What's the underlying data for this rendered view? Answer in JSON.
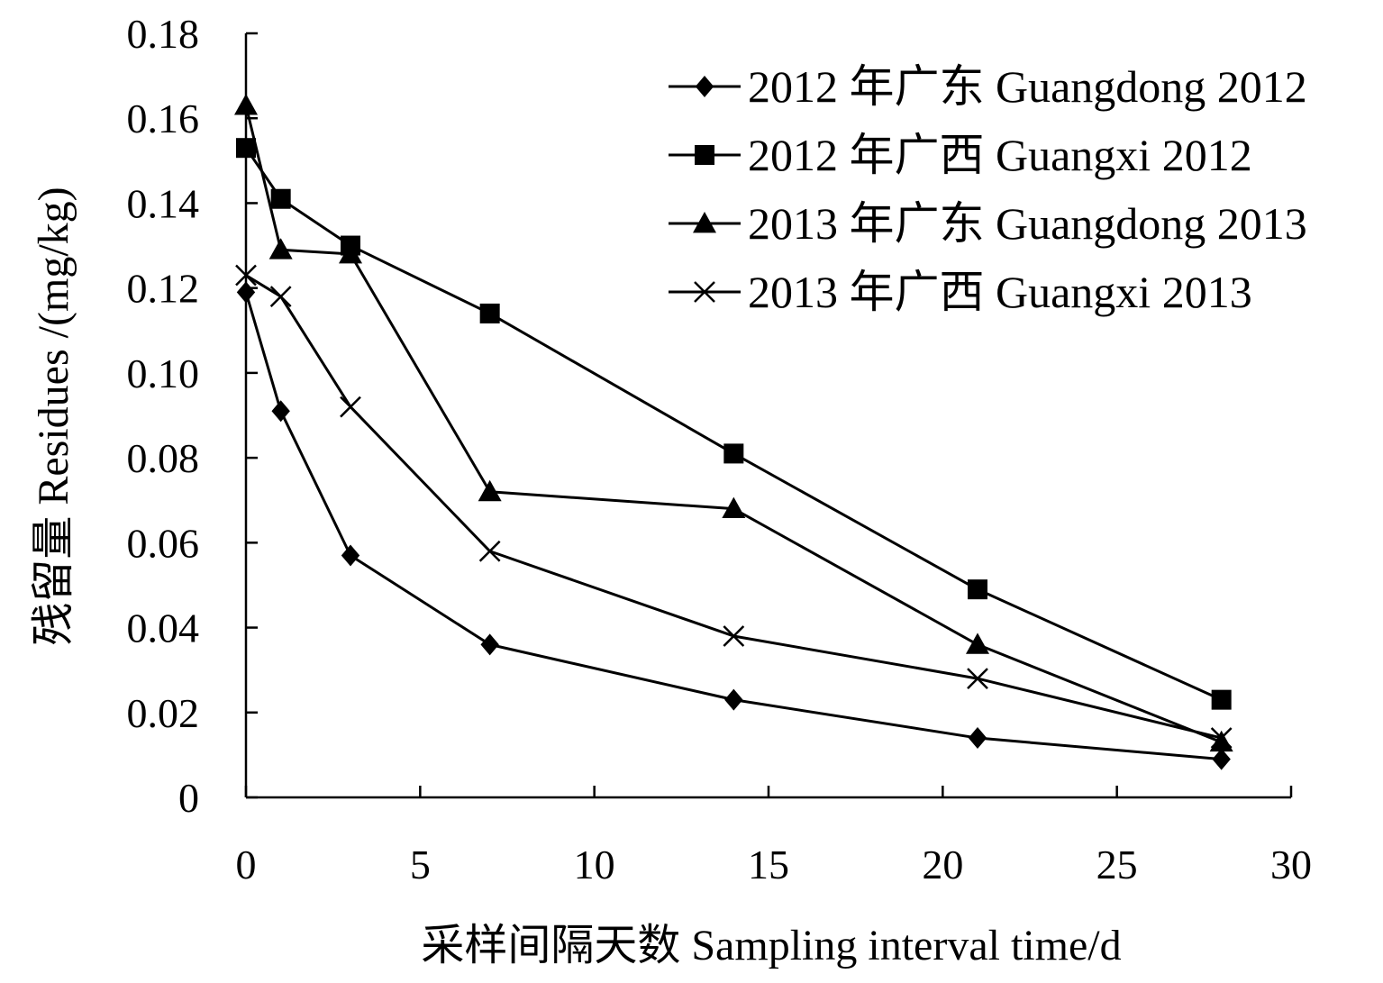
{
  "chart_data": {
    "type": "line",
    "title": "",
    "xlabel": "采样间隔天数 Sampling interval time/d",
    "ylabel": "残留量 Residues /(mg/kg)",
    "xlim": [
      0,
      30
    ],
    "ylim": [
      0,
      0.18
    ],
    "xticks": [
      0,
      5,
      10,
      15,
      20,
      25,
      30
    ],
    "xtick_labels": [
      "0",
      "5",
      "10",
      "15",
      "20",
      "25",
      "30"
    ],
    "yticks": [
      0,
      0.02,
      0.04,
      0.06,
      0.08,
      0.1,
      0.12,
      0.14,
      0.16,
      0.18
    ],
    "ytick_labels": [
      "0",
      "0.02",
      "0.04",
      "0.06",
      "0.08",
      "0.10",
      "0.12",
      "0.14",
      "0.16",
      "0.18"
    ],
    "grid": false,
    "legend_position": "top-right",
    "x": [
      0,
      1,
      3,
      7,
      14,
      21,
      28
    ],
    "series": [
      {
        "name": "2012 年广东 Guangdong 2012",
        "marker": "diamond",
        "values": [
          0.119,
          0.091,
          0.057,
          0.036,
          0.023,
          0.014,
          0.009
        ]
      },
      {
        "name": "2012 年广西 Guangxi 2012",
        "marker": "square",
        "values": [
          0.153,
          0.141,
          0.13,
          0.114,
          0.081,
          0.049,
          0.023
        ]
      },
      {
        "name": "2013 年广东 Guangdong 2013",
        "marker": "triangle",
        "values": [
          0.163,
          0.129,
          0.128,
          0.072,
          0.068,
          0.036,
          0.013
        ]
      },
      {
        "name": "2013 年广西 Guangxi 2013",
        "marker": "cross",
        "values": [
          0.123,
          0.118,
          0.092,
          0.058,
          0.038,
          0.028,
          0.014
        ]
      }
    ],
    "colors": {
      "line": "#000000",
      "background": "#ffffff"
    }
  }
}
